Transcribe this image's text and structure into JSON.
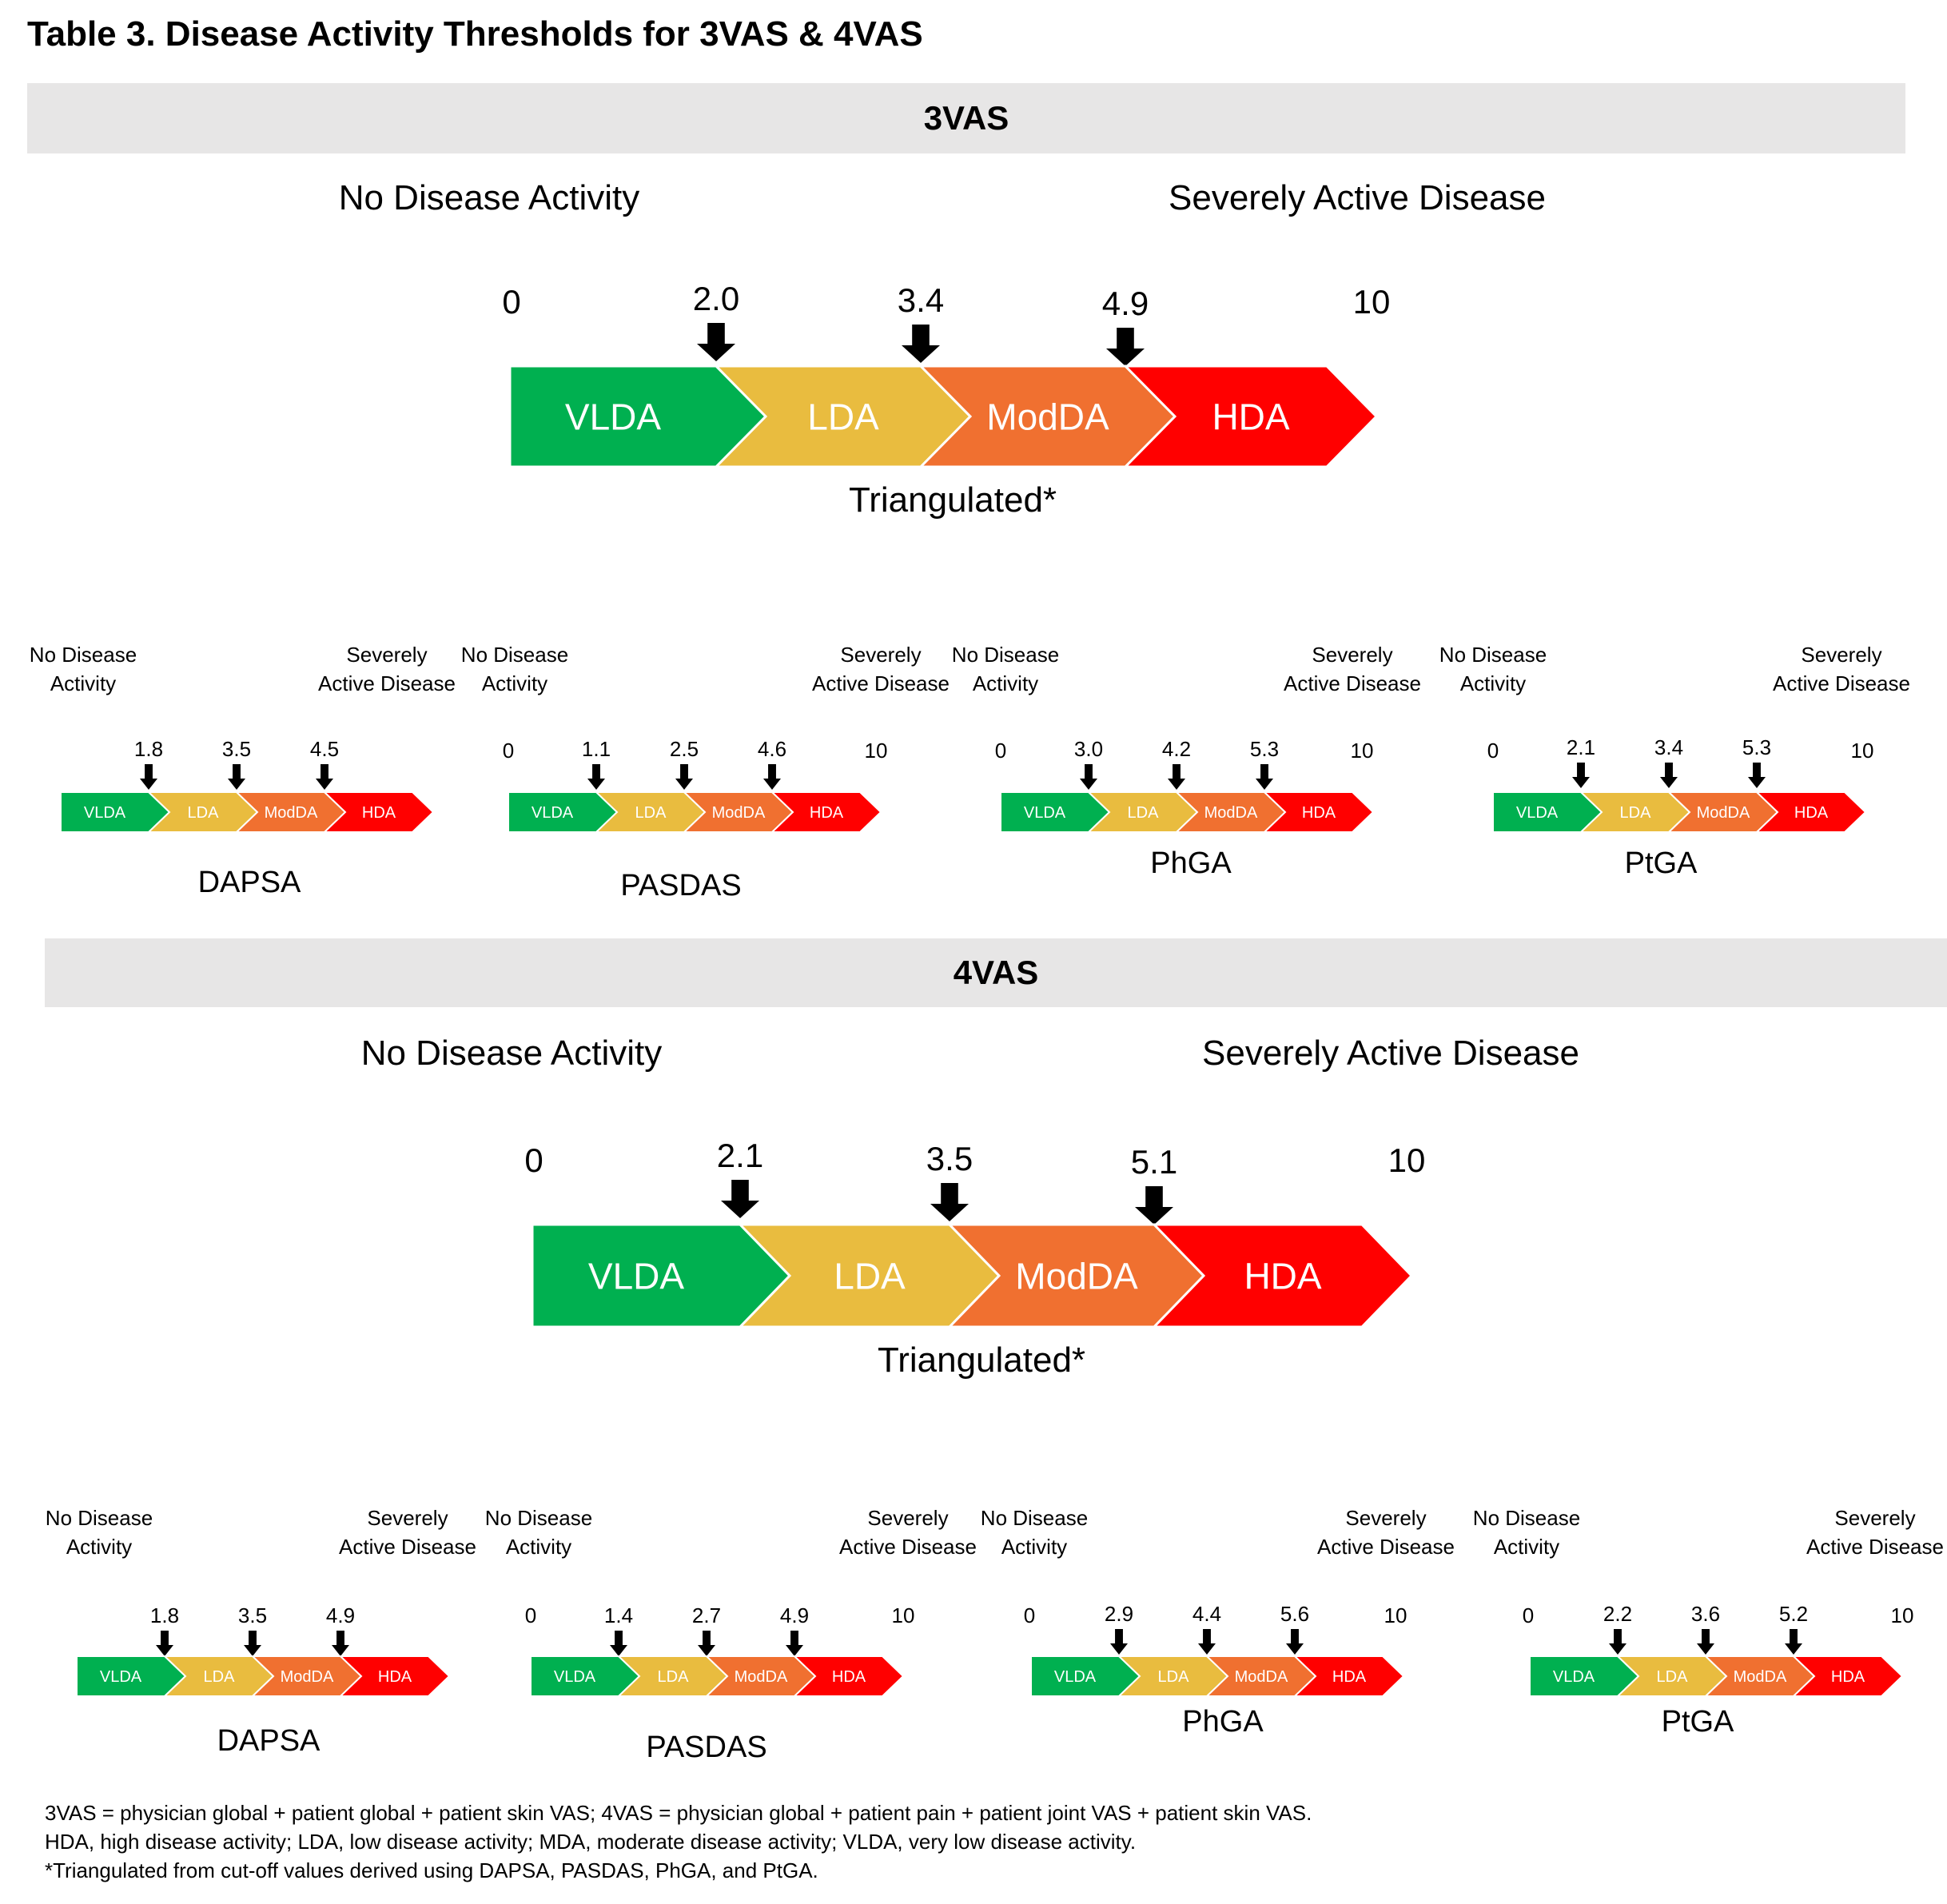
{
  "title": "Table 3. Disease Activity Thresholds for 3VAS & 4VAS",
  "sections": [
    {
      "heading": "3VAS",
      "main": {
        "left_label": "No Disease Activity",
        "right_label": "Severely Active Disease",
        "min_label": "0",
        "max_label": "10",
        "thresholds": [
          "2.0",
          "3.4",
          "4.9"
        ],
        "caption": "Triangulated*"
      },
      "small": [
        {
          "name": "DAPSA",
          "left_label": [
            "No Disease",
            "Activity"
          ],
          "right_label": [
            "Severely",
            "Active Disease"
          ],
          "min_label": "",
          "max_label": "",
          "thresholds": [
            "1.8",
            "3.5",
            "4.5"
          ]
        },
        {
          "name": "PASDAS",
          "left_label": [
            "No Disease",
            "Activity"
          ],
          "right_label": [
            "Severely",
            "Active Disease"
          ],
          "min_label": "0",
          "max_label": "10",
          "thresholds": [
            "1.1",
            "2.5",
            "4.6"
          ]
        },
        {
          "name": "PhGA",
          "left_label": [
            "No Disease",
            "Activity"
          ],
          "right_label": [
            "Severely",
            "Active Disease"
          ],
          "min_label": "0",
          "max_label": "10",
          "thresholds": [
            "3.0",
            "4.2",
            "5.3"
          ]
        },
        {
          "name": "PtGA",
          "left_label": [
            "No Disease",
            "Activity"
          ],
          "right_label": [
            "Severely",
            "Active Disease"
          ],
          "min_label": "0",
          "max_label": "10",
          "thresholds": [
            "2.1",
            "3.4",
            "5.3"
          ]
        }
      ]
    },
    {
      "heading": "4VAS",
      "main": {
        "left_label": "No Disease Activity",
        "right_label": "Severely Active Disease",
        "min_label": "0",
        "max_label": "10",
        "thresholds": [
          "2.1",
          "3.5",
          "5.1"
        ],
        "caption": "Triangulated*"
      },
      "small": [
        {
          "name": "DAPSA",
          "left_label": [
            "No Disease",
            "Activity"
          ],
          "right_label": [
            "Severely",
            "Active Disease"
          ],
          "min_label": "",
          "max_label": "",
          "thresholds": [
            "1.8",
            "3.5",
            "4.9"
          ]
        },
        {
          "name": "PASDAS",
          "left_label": [
            "No Disease",
            "Activity"
          ],
          "right_label": [
            "Severely",
            "Active Disease"
          ],
          "min_label": "0",
          "max_label": "10",
          "thresholds": [
            "1.4",
            "2.7",
            "4.9"
          ]
        },
        {
          "name": "PhGA",
          "left_label": [
            "No Disease",
            "Activity"
          ],
          "right_label": [
            "Severely",
            "Active Disease"
          ],
          "min_label": "0",
          "max_label": "10",
          "thresholds": [
            "2.9",
            "4.4",
            "5.6"
          ]
        },
        {
          "name": "PtGA",
          "left_label": [
            "No Disease",
            "Activity"
          ],
          "right_label": [
            "Severely",
            "Active Disease"
          ],
          "min_label": "0",
          "max_label": "10",
          "thresholds": [
            "2.2",
            "3.6",
            "5.2"
          ]
        }
      ]
    }
  ],
  "categories": [
    {
      "label": "VLDA",
      "color": "#00b050"
    },
    {
      "label": "LDA",
      "color": "#e9bc3f"
    },
    {
      "label": "ModDA",
      "color": "#f07030"
    },
    {
      "label": "HDA",
      "color": "#ff0000"
    }
  ],
  "footnotes": [
    "3VAS = physician global + patient global + patient skin VAS; 4VAS = physician global + patient pain + patient joint VAS + patient skin VAS.",
    "HDA, high disease activity; LDA, low disease activity; MDA, moderate disease activity; VLDA, very low disease activity.",
    "*Triangulated from cut-off values derived using DAPSA, PASDAS, PhGA, and PtGA."
  ]
}
